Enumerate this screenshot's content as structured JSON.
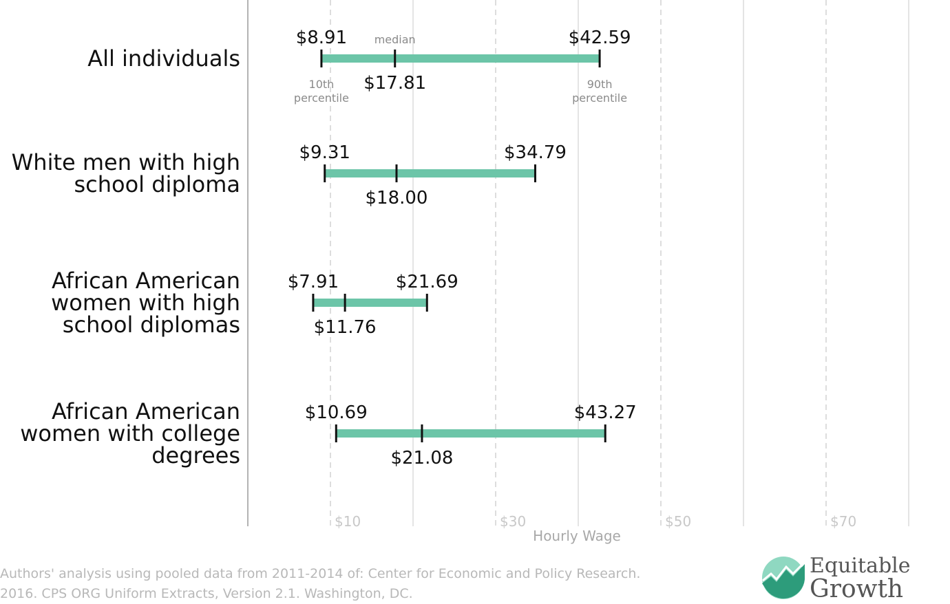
{
  "chart_data": {
    "type": "range",
    "xlabel": "Hourly Wage",
    "xlim": [
      0,
      80
    ],
    "tick_values": [
      10,
      30,
      50,
      70
    ],
    "tick_labels": [
      "$10",
      "$30",
      "$50",
      "$70"
    ],
    "grid": true,
    "bar_color": "#6cc5a8",
    "annotations": {
      "median": "median",
      "p10_line1": "10th",
      "p10_line2": "percentile",
      "p90_line1": "90th",
      "p90_line2": "percentile"
    },
    "rows": [
      {
        "category_lines": [
          "All individuals"
        ],
        "p10": 8.91,
        "median": 17.81,
        "p90": 42.59,
        "p10_label": "$8.91",
        "median_label": "$17.81",
        "p90_label": "$42.59"
      },
      {
        "category_lines": [
          "White men with high",
          "school diploma"
        ],
        "p10": 9.31,
        "median": 18.0,
        "p90": 34.79,
        "p10_label": "$9.31",
        "median_label": "$18.00",
        "p90_label": "$34.79"
      },
      {
        "category_lines": [
          "African American",
          "women with high",
          "school diplomas"
        ],
        "p10": 7.91,
        "median": 11.76,
        "p90": 21.69,
        "p10_label": "$7.91",
        "median_label": "$11.76",
        "p90_label": "$21.69"
      },
      {
        "category_lines": [
          "African American",
          "women with college",
          "degrees"
        ],
        "p10": 10.69,
        "median": 21.08,
        "p90": 43.27,
        "p10_label": "$10.69",
        "median_label": "$21.08",
        "p90_label": "$43.27"
      }
    ]
  },
  "source": {
    "line1": "Authors' analysis using pooled data from 2011-2014 of: Center for Economic and Policy Research.",
    "line2": "2016. CPS ORG Uniform Extracts, Version 2.1. Washington, DC."
  },
  "brand": {
    "line1": "Equitable",
    "line2": "Growth",
    "icon": "equitable-growth-logo-icon",
    "colors": {
      "dark": "#2d9c7b",
      "light": "#8fd8c1"
    }
  }
}
